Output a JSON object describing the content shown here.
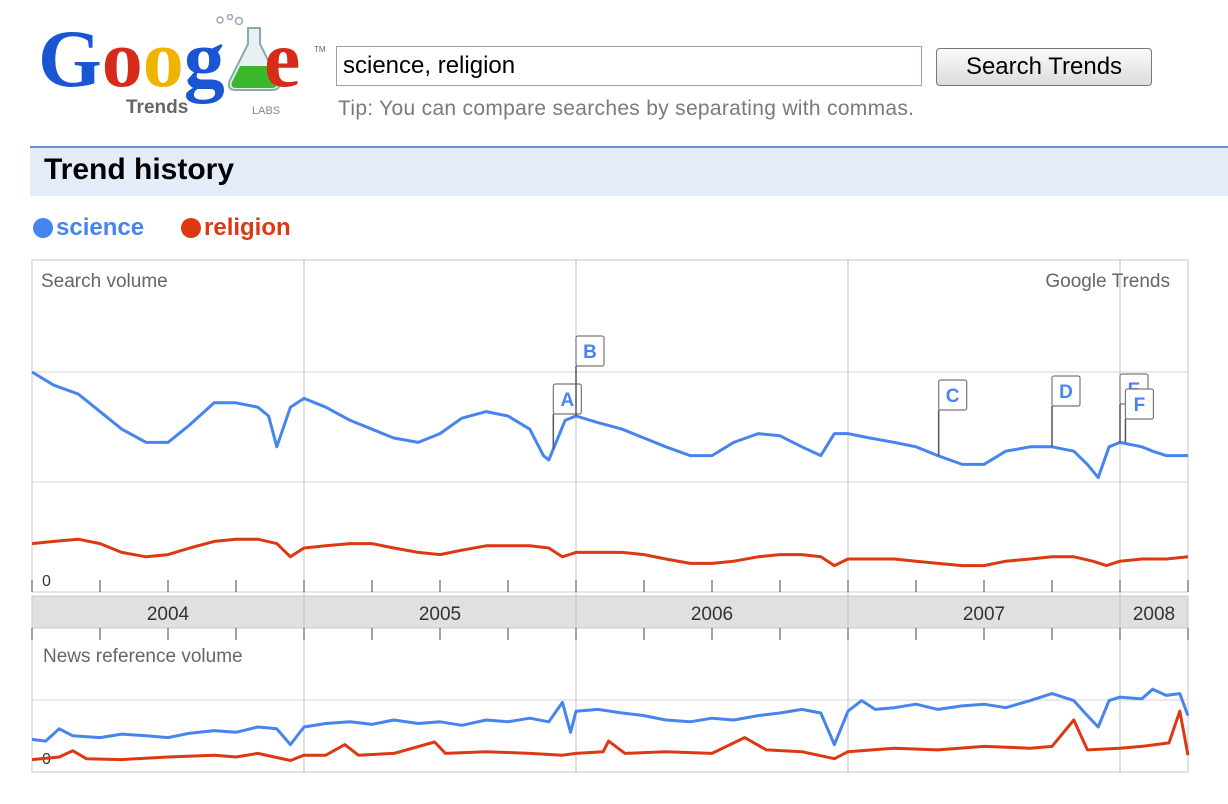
{
  "logo": {
    "wordmark": "Google",
    "product": "Trends",
    "badge": "LABS",
    "trademark": "TM"
  },
  "search": {
    "query": "science, religion",
    "button_label": "Search Trends",
    "tip": "Tip: You can compare searches by separating with commas."
  },
  "section": {
    "title": "Trend history"
  },
  "legend": [
    {
      "term": "science",
      "color": "#4684ee"
    },
    {
      "term": "religion",
      "color": "#dc3912"
    }
  ],
  "chart_data": {
    "type": "line",
    "top_panel": {
      "label": "Search volume",
      "watermark": "Google Trends",
      "y_zero_label": "0"
    },
    "years": [
      "2004",
      "2005",
      "2006",
      "2007",
      "2008"
    ],
    "bottom_panel": {
      "label": "News reference volume",
      "y_zero_label": "0"
    },
    "annotations": [
      {
        "letter": "A",
        "date": "2005-12"
      },
      {
        "letter": "B",
        "date": "2006-01"
      },
      {
        "letter": "C",
        "date": "2007-05"
      },
      {
        "letter": "D",
        "date": "2007-10"
      },
      {
        "letter": "E",
        "date": "2008-01"
      },
      {
        "letter": "F",
        "date": "2008-01"
      }
    ],
    "series": [
      {
        "name": "science",
        "color": "#4684ee"
      },
      {
        "name": "religion",
        "color": "#dc3912"
      }
    ],
    "search_volume": {
      "science": [
        [
          2004.0,
          1.0
        ],
        [
          2004.08,
          0.94
        ],
        [
          2004.17,
          0.9
        ],
        [
          2004.25,
          0.82
        ],
        [
          2004.33,
          0.74
        ],
        [
          2004.42,
          0.68
        ],
        [
          2004.5,
          0.68
        ],
        [
          2004.58,
          0.76
        ],
        [
          2004.67,
          0.86
        ],
        [
          2004.75,
          0.86
        ],
        [
          2004.83,
          0.84
        ],
        [
          2004.87,
          0.8
        ],
        [
          2004.9,
          0.66
        ],
        [
          2004.95,
          0.84
        ],
        [
          2005.0,
          0.88
        ],
        [
          2005.08,
          0.84
        ],
        [
          2005.17,
          0.78
        ],
        [
          2005.25,
          0.74
        ],
        [
          2005.33,
          0.7
        ],
        [
          2005.42,
          0.68
        ],
        [
          2005.5,
          0.72
        ],
        [
          2005.58,
          0.79
        ],
        [
          2005.67,
          0.82
        ],
        [
          2005.75,
          0.8
        ],
        [
          2005.83,
          0.74
        ],
        [
          2005.88,
          0.62
        ],
        [
          2005.9,
          0.6
        ],
        [
          2005.96,
          0.78
        ],
        [
          2006.0,
          0.8
        ],
        [
          2006.08,
          0.77
        ],
        [
          2006.17,
          0.74
        ],
        [
          2006.25,
          0.7
        ],
        [
          2006.33,
          0.66
        ],
        [
          2006.42,
          0.62
        ],
        [
          2006.5,
          0.62
        ],
        [
          2006.58,
          0.68
        ],
        [
          2006.67,
          0.72
        ],
        [
          2006.75,
          0.71
        ],
        [
          2006.83,
          0.66
        ],
        [
          2006.9,
          0.62
        ],
        [
          2006.95,
          0.72
        ],
        [
          2007.0,
          0.72
        ],
        [
          2007.08,
          0.7
        ],
        [
          2007.17,
          0.68
        ],
        [
          2007.25,
          0.66
        ],
        [
          2007.33,
          0.62
        ],
        [
          2007.42,
          0.58
        ],
        [
          2007.5,
          0.58
        ],
        [
          2007.58,
          0.64
        ],
        [
          2007.67,
          0.66
        ],
        [
          2007.75,
          0.66
        ],
        [
          2007.83,
          0.64
        ],
        [
          2007.88,
          0.58
        ],
        [
          2007.92,
          0.52
        ],
        [
          2007.96,
          0.66
        ],
        [
          2008.0,
          0.68
        ],
        [
          2008.08,
          0.66
        ],
        [
          2008.12,
          0.64
        ],
        [
          2008.17,
          0.62
        ],
        [
          2008.25,
          0.62
        ]
      ],
      "religion": [
        [
          2004.0,
          0.22
        ],
        [
          2004.08,
          0.23
        ],
        [
          2004.17,
          0.24
        ],
        [
          2004.25,
          0.22
        ],
        [
          2004.33,
          0.18
        ],
        [
          2004.42,
          0.16
        ],
        [
          2004.5,
          0.17
        ],
        [
          2004.58,
          0.2
        ],
        [
          2004.67,
          0.23
        ],
        [
          2004.75,
          0.24
        ],
        [
          2004.83,
          0.24
        ],
        [
          2004.9,
          0.22
        ],
        [
          2004.95,
          0.16
        ],
        [
          2005.0,
          0.2
        ],
        [
          2005.08,
          0.21
        ],
        [
          2005.17,
          0.22
        ],
        [
          2005.25,
          0.22
        ],
        [
          2005.33,
          0.2
        ],
        [
          2005.42,
          0.18
        ],
        [
          2005.5,
          0.17
        ],
        [
          2005.58,
          0.19
        ],
        [
          2005.67,
          0.21
        ],
        [
          2005.75,
          0.21
        ],
        [
          2005.83,
          0.21
        ],
        [
          2005.9,
          0.2
        ],
        [
          2005.95,
          0.16
        ],
        [
          2006.0,
          0.18
        ],
        [
          2006.08,
          0.18
        ],
        [
          2006.17,
          0.18
        ],
        [
          2006.25,
          0.17
        ],
        [
          2006.33,
          0.15
        ],
        [
          2006.42,
          0.13
        ],
        [
          2006.5,
          0.13
        ],
        [
          2006.58,
          0.14
        ],
        [
          2006.67,
          0.16
        ],
        [
          2006.75,
          0.17
        ],
        [
          2006.83,
          0.17
        ],
        [
          2006.9,
          0.16
        ],
        [
          2006.95,
          0.12
        ],
        [
          2007.0,
          0.15
        ],
        [
          2007.08,
          0.15
        ],
        [
          2007.17,
          0.15
        ],
        [
          2007.25,
          0.14
        ],
        [
          2007.33,
          0.13
        ],
        [
          2007.42,
          0.12
        ],
        [
          2007.5,
          0.12
        ],
        [
          2007.58,
          0.14
        ],
        [
          2007.67,
          0.15
        ],
        [
          2007.75,
          0.16
        ],
        [
          2007.83,
          0.16
        ],
        [
          2007.9,
          0.14
        ],
        [
          2007.95,
          0.12
        ],
        [
          2008.0,
          0.14
        ],
        [
          2008.08,
          0.15
        ],
        [
          2008.17,
          0.15
        ],
        [
          2008.25,
          0.16
        ]
      ]
    },
    "news_reference_volume": {
      "science": [
        [
          2004.0,
          0.28
        ],
        [
          2004.05,
          0.26
        ],
        [
          2004.1,
          0.4
        ],
        [
          2004.15,
          0.32
        ],
        [
          2004.25,
          0.3
        ],
        [
          2004.33,
          0.34
        ],
        [
          2004.42,
          0.32
        ],
        [
          2004.5,
          0.3
        ],
        [
          2004.58,
          0.35
        ],
        [
          2004.67,
          0.38
        ],
        [
          2004.75,
          0.36
        ],
        [
          2004.83,
          0.42
        ],
        [
          2004.9,
          0.4
        ],
        [
          2004.95,
          0.22
        ],
        [
          2005.0,
          0.42
        ],
        [
          2005.08,
          0.46
        ],
        [
          2005.17,
          0.48
        ],
        [
          2005.25,
          0.45
        ],
        [
          2005.33,
          0.5
        ],
        [
          2005.42,
          0.46
        ],
        [
          2005.5,
          0.48
        ],
        [
          2005.58,
          0.44
        ],
        [
          2005.67,
          0.5
        ],
        [
          2005.75,
          0.48
        ],
        [
          2005.83,
          0.52
        ],
        [
          2005.9,
          0.48
        ],
        [
          2005.95,
          0.7
        ],
        [
          2005.98,
          0.36
        ],
        [
          2006.0,
          0.6
        ],
        [
          2006.08,
          0.62
        ],
        [
          2006.17,
          0.58
        ],
        [
          2006.25,
          0.55
        ],
        [
          2006.33,
          0.5
        ],
        [
          2006.42,
          0.48
        ],
        [
          2006.5,
          0.52
        ],
        [
          2006.58,
          0.5
        ],
        [
          2006.67,
          0.55
        ],
        [
          2006.75,
          0.58
        ],
        [
          2006.83,
          0.62
        ],
        [
          2006.9,
          0.58
        ],
        [
          2006.95,
          0.22
        ],
        [
          2007.0,
          0.6
        ],
        [
          2007.05,
          0.72
        ],
        [
          2007.1,
          0.62
        ],
        [
          2007.17,
          0.64
        ],
        [
          2007.25,
          0.68
        ],
        [
          2007.33,
          0.62
        ],
        [
          2007.42,
          0.66
        ],
        [
          2007.5,
          0.68
        ],
        [
          2007.58,
          0.64
        ],
        [
          2007.67,
          0.72
        ],
        [
          2007.75,
          0.8
        ],
        [
          2007.83,
          0.72
        ],
        [
          2007.88,
          0.55
        ],
        [
          2007.92,
          0.42
        ],
        [
          2007.96,
          0.72
        ],
        [
          2008.0,
          0.76
        ],
        [
          2008.08,
          0.74
        ],
        [
          2008.12,
          0.85
        ],
        [
          2008.17,
          0.78
        ],
        [
          2008.22,
          0.8
        ],
        [
          2008.25,
          0.55
        ]
      ],
      "religion": [
        [
          2004.0,
          0.05
        ],
        [
          2004.1,
          0.08
        ],
        [
          2004.15,
          0.15
        ],
        [
          2004.2,
          0.06
        ],
        [
          2004.33,
          0.05
        ],
        [
          2004.5,
          0.08
        ],
        [
          2004.67,
          0.1
        ],
        [
          2004.75,
          0.08
        ],
        [
          2004.83,
          0.12
        ],
        [
          2004.95,
          0.04
        ],
        [
          2005.0,
          0.1
        ],
        [
          2005.08,
          0.1
        ],
        [
          2005.15,
          0.22
        ],
        [
          2005.2,
          0.1
        ],
        [
          2005.33,
          0.12
        ],
        [
          2005.48,
          0.25
        ],
        [
          2005.52,
          0.12
        ],
        [
          2005.67,
          0.14
        ],
        [
          2005.83,
          0.12
        ],
        [
          2005.95,
          0.1
        ],
        [
          2006.0,
          0.12
        ],
        [
          2006.1,
          0.14
        ],
        [
          2006.12,
          0.26
        ],
        [
          2006.18,
          0.12
        ],
        [
          2006.33,
          0.14
        ],
        [
          2006.5,
          0.12
        ],
        [
          2006.62,
          0.3
        ],
        [
          2006.7,
          0.16
        ],
        [
          2006.83,
          0.14
        ],
        [
          2006.95,
          0.06
        ],
        [
          2007.0,
          0.14
        ],
        [
          2007.17,
          0.18
        ],
        [
          2007.33,
          0.16
        ],
        [
          2007.5,
          0.2
        ],
        [
          2007.67,
          0.18
        ],
        [
          2007.75,
          0.2
        ],
        [
          2007.83,
          0.5
        ],
        [
          2007.88,
          0.16
        ],
        [
          2008.0,
          0.18
        ],
        [
          2008.08,
          0.2
        ],
        [
          2008.18,
          0.24
        ],
        [
          2008.22,
          0.6
        ],
        [
          2008.25,
          0.1
        ]
      ]
    }
  }
}
